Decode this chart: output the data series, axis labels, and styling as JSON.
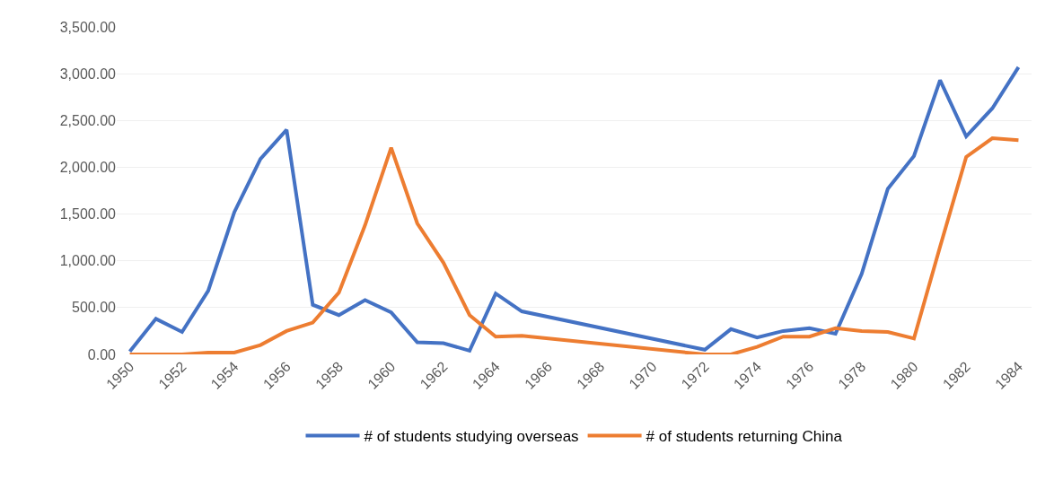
{
  "chart_data": {
    "type": "line",
    "x": [
      1950,
      1951,
      1952,
      1953,
      1954,
      1955,
      1956,
      1957,
      1958,
      1959,
      1960,
      1961,
      1962,
      1963,
      1964,
      1965,
      1972,
      1973,
      1974,
      1975,
      1976,
      1977,
      1978,
      1979,
      1980,
      1981,
      1982,
      1983,
      1984
    ],
    "series": [
      {
        "name": "# of students studying overseas",
        "color": "#4472c4",
        "values": [
          30,
          380,
          240,
          680,
          1520,
          2090,
          2400,
          530,
          420,
          580,
          450,
          130,
          120,
          40,
          650,
          460,
          50,
          270,
          180,
          250,
          280,
          220,
          860,
          1770,
          2120,
          2930,
          2330,
          2630,
          3070
        ]
      },
      {
        "name": "# of students returning China",
        "color": "#ed7d31",
        "values": [
          0,
          0,
          0,
          20,
          20,
          100,
          250,
          340,
          660,
          1380,
          2210,
          1400,
          980,
          420,
          190,
          200,
          0,
          0,
          80,
          190,
          190,
          280,
          250,
          240,
          170,
          1150,
          2110,
          2310,
          2290
        ]
      }
    ],
    "xlim": [
      1949.5,
      1984.5
    ],
    "xticks": [
      1950,
      1952,
      1954,
      1956,
      1958,
      1960,
      1962,
      1964,
      1966,
      1968,
      1970,
      1972,
      1974,
      1976,
      1978,
      1980,
      1982,
      1984
    ],
    "ylim": [
      0,
      3500
    ],
    "yticks": [
      {
        "value": 0,
        "label": "0.00"
      },
      {
        "value": 500,
        "label": "500.00"
      },
      {
        "value": 1000,
        "label": "1,000.00"
      },
      {
        "value": 1500,
        "label": "1,500.00"
      },
      {
        "value": 2000,
        "label": "2,000.00"
      },
      {
        "value": 2500,
        "label": "2,500.00"
      },
      {
        "value": 3000,
        "label": "3,000.00"
      },
      {
        "value": 3500,
        "label": "3,500.00"
      }
    ],
    "grid": "y",
    "legend": "bottom",
    "marker": "none",
    "line_style": "solid"
  }
}
